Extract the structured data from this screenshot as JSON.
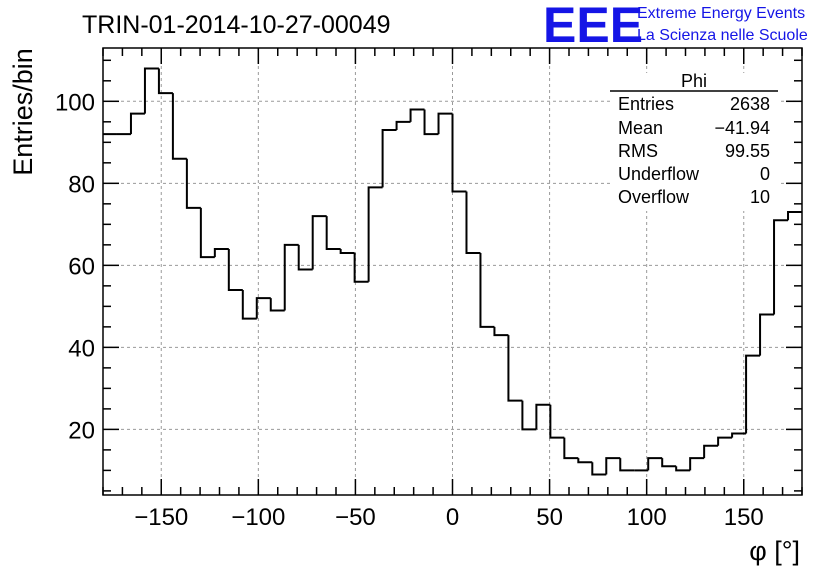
{
  "chart_data": {
    "type": "histogram",
    "title": "TRIN-01-2014-10-27-00049",
    "xlabel": "φ [°]",
    "ylabel": "Entries/bin",
    "xlim": [
      -180,
      180
    ],
    "ylim": [
      4,
      113
    ],
    "grid": true,
    "bin_width": 7.2,
    "x_ticks": [
      -150,
      -100,
      -50,
      0,
      50,
      100,
      150
    ],
    "x_tick_labels": [
      "−150",
      "−100",
      "−50",
      "0",
      "50",
      "100",
      "150"
    ],
    "y_ticks": [
      20,
      40,
      60,
      80,
      100
    ],
    "y_tick_labels": [
      "20",
      "40",
      "60",
      "80",
      "100"
    ],
    "values": [
      92,
      92,
      97,
      108,
      102,
      86,
      74,
      62,
      64,
      54,
      47,
      52,
      49,
      65,
      59,
      72,
      64,
      63,
      56,
      79,
      93,
      95,
      98,
      92,
      97,
      78,
      63,
      45,
      43,
      27,
      20,
      26,
      18,
      13,
      12,
      9,
      13,
      10,
      10,
      13,
      11,
      10,
      13,
      16,
      18,
      19,
      38,
      48,
      71,
      73
    ],
    "stats_box": {
      "name": "Phi",
      "rows": [
        {
          "label": "Entries",
          "value": "2638"
        },
        {
          "label": "Mean",
          "value": "−41.94"
        },
        {
          "label": "RMS",
          "value": "99.55"
        },
        {
          "label": "Underflow",
          "value": "0"
        },
        {
          "label": "Overflow",
          "value": "10"
        }
      ]
    }
  },
  "logo": {
    "mark": "EEE",
    "line1": "Extreme Energy Events",
    "line2": "La Scienza nelle Scuole",
    "color": "#1515e6"
  }
}
